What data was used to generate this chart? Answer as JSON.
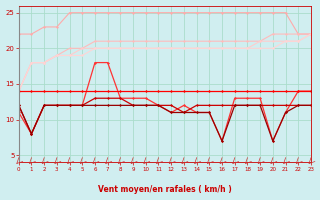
{
  "x": [
    0,
    1,
    2,
    3,
    4,
    5,
    6,
    7,
    8,
    9,
    10,
    11,
    12,
    13,
    14,
    15,
    16,
    17,
    18,
    19,
    20,
    21,
    22,
    23
  ],
  "series": [
    {
      "y": [
        22,
        22,
        23,
        23,
        25,
        25,
        25,
        25,
        25,
        25,
        25,
        25,
        25,
        25,
        25,
        25,
        25,
        25,
        25,
        25,
        25,
        25,
        22,
        22
      ],
      "color": "#ffaaaa",
      "lw": 0.8,
      "marker": "D",
      "ms": 1.5
    },
    {
      "y": [
        14,
        18,
        18,
        19,
        20,
        20,
        21,
        21,
        21,
        21,
        21,
        21,
        21,
        21,
        21,
        21,
        21,
        21,
        21,
        21,
        22,
        22,
        22,
        22
      ],
      "color": "#ffbbbb",
      "lw": 0.8,
      "marker": "D",
      "ms": 1.5
    },
    {
      "y": [
        14,
        18,
        18,
        19,
        19,
        20,
        20,
        20,
        20,
        20,
        20,
        20,
        20,
        20,
        20,
        20,
        20,
        20,
        20,
        21,
        21,
        21,
        21,
        22
      ],
      "color": "#ffcccc",
      "lw": 0.8,
      "marker": "D",
      "ms": 1.5
    },
    {
      "y": [
        14,
        18,
        18,
        19,
        19,
        19,
        20,
        20,
        20,
        20,
        20,
        20,
        20,
        20,
        20,
        20,
        20,
        20,
        20,
        20,
        20,
        21,
        21,
        22
      ],
      "color": "#ffd5d5",
      "lw": 0.8,
      "marker": "D",
      "ms": 1.5
    },
    {
      "y": [
        11,
        8,
        12,
        12,
        12,
        12,
        18,
        18,
        13,
        13,
        13,
        12,
        11,
        12,
        11,
        11,
        7,
        13,
        13,
        13,
        7,
        11,
        14,
        14
      ],
      "color": "#ff3333",
      "lw": 0.9,
      "marker": "D",
      "ms": 1.5
    },
    {
      "y": [
        14,
        14,
        14,
        14,
        14,
        14,
        14,
        14,
        14,
        14,
        14,
        14,
        14,
        14,
        14,
        14,
        14,
        14,
        14,
        14,
        14,
        14,
        14,
        14
      ],
      "color": "#ff0000",
      "lw": 0.9,
      "marker": "D",
      "ms": 1.5
    },
    {
      "y": [
        12,
        8,
        12,
        12,
        12,
        12,
        13,
        13,
        13,
        12,
        12,
        12,
        12,
        11,
        12,
        12,
        12,
        12,
        12,
        12,
        12,
        12,
        12,
        12
      ],
      "color": "#cc0000",
      "lw": 0.9,
      "marker": "D",
      "ms": 1.5
    },
    {
      "y": [
        12,
        8,
        12,
        12,
        12,
        12,
        12,
        12,
        12,
        12,
        12,
        12,
        11,
        11,
        11,
        11,
        7,
        12,
        12,
        12,
        7,
        11,
        12,
        12
      ],
      "color": "#990000",
      "lw": 0.9,
      "marker": "D",
      "ms": 1.5
    }
  ],
  "xlabel": "Vent moyen/en rafales ( km/h )",
  "xlim": [
    0,
    23
  ],
  "ylim": [
    4,
    26
  ],
  "yticks": [
    5,
    10,
    15,
    20,
    25
  ],
  "xticks": [
    0,
    1,
    2,
    3,
    4,
    5,
    6,
    7,
    8,
    9,
    10,
    11,
    12,
    13,
    14,
    15,
    16,
    17,
    18,
    19,
    20,
    21,
    22,
    23
  ],
  "bg_color": "#d0eef0",
  "grid_color": "#aaddcc",
  "xlabel_color": "#cc0000",
  "tick_color": "#cc0000",
  "arrow_color": "#cc3333"
}
